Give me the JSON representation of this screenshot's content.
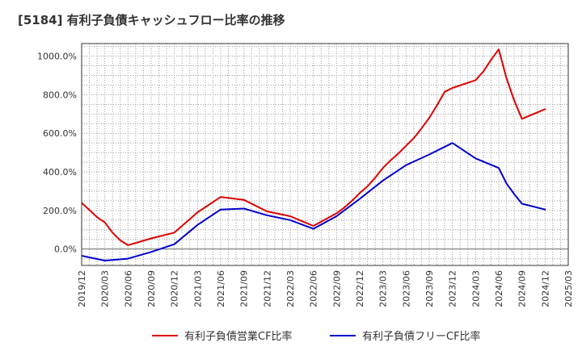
{
  "chart_data": {
    "type": "line",
    "title": "[5184]  有利子負債キャッシュフロー比率の推移",
    "xlabel": "",
    "ylabel": "",
    "ylim": [
      -0.85,
      10.65
    ],
    "y_ticks": [
      0,
      2,
      4,
      6,
      8,
      10
    ],
    "y_tick_labels": [
      "0.0%",
      "200.0%",
      "400.0%",
      "600.0%",
      "800.0%",
      "1000.0%"
    ],
    "x_range": [
      "2019/12",
      "2025/03"
    ],
    "x_ticks": [
      "2019/12",
      "2020/03",
      "2020/06",
      "2020/09",
      "2020/12",
      "2021/03",
      "2021/06",
      "2021/09",
      "2021/12",
      "2022/03",
      "2022/06",
      "2022/09",
      "2022/12",
      "2023/03",
      "2023/06",
      "2023/09",
      "2023/12",
      "2024/03",
      "2024/06",
      "2024/09",
      "2024/12",
      "2025/03"
    ],
    "grid": true,
    "legend_position": "bottom",
    "series": [
      {
        "name": "有利子負債営業CF比率",
        "color": "#dd0000",
        "x": [
          "2019/12",
          "2020/02",
          "2020/03",
          "2020/04",
          "2020/05",
          "2020/06",
          "2020/09",
          "2020/12",
          "2021/03",
          "2021/06",
          "2021/09",
          "2021/12",
          "2022/03",
          "2022/06",
          "2022/09",
          "2022/10",
          "2022/11",
          "2022/12",
          "2023/01",
          "2023/02",
          "2023/03",
          "2023/04",
          "2023/05",
          "2023/06",
          "2023/07",
          "2023/08",
          "2023/09",
          "2023/10",
          "2023/11",
          "2023/12",
          "2024/03",
          "2024/04",
          "2024/05",
          "2024/06",
          "2024/07",
          "2024/08",
          "2024/09",
          "2024/12"
        ],
        "values": [
          2.4,
          1.65,
          1.38,
          0.85,
          0.45,
          0.2,
          0.55,
          0.85,
          1.9,
          2.7,
          2.55,
          1.95,
          1.7,
          1.2,
          1.85,
          2.15,
          2.5,
          2.9,
          3.25,
          3.7,
          4.2,
          4.6,
          4.95,
          5.35,
          5.75,
          6.25,
          6.8,
          7.45,
          8.15,
          8.35,
          8.75,
          9.2,
          9.8,
          10.35,
          8.85,
          7.7,
          6.75,
          7.25
        ]
      },
      {
        "name": "有利子負債フリーCF比率",
        "color": "#0000cc",
        "x": [
          "2019/12",
          "2020/03",
          "2020/06",
          "2020/09",
          "2020/12",
          "2021/03",
          "2021/06",
          "2021/09",
          "2021/12",
          "2022/03",
          "2022/06",
          "2022/09",
          "2022/12",
          "2023/03",
          "2023/06",
          "2023/09",
          "2023/12",
          "2024/03",
          "2024/06",
          "2024/07",
          "2024/08",
          "2024/09",
          "2024/12"
        ],
        "values": [
          -0.35,
          -0.6,
          -0.5,
          -0.15,
          0.25,
          1.25,
          2.05,
          2.1,
          1.75,
          1.5,
          1.05,
          1.7,
          2.6,
          3.55,
          4.35,
          4.9,
          5.5,
          4.7,
          4.2,
          3.4,
          2.85,
          2.35,
          2.05
        ]
      }
    ]
  }
}
